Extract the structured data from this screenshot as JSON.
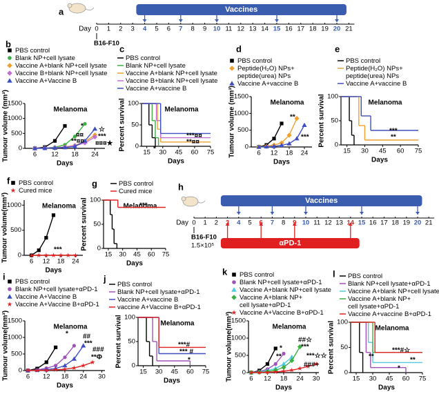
{
  "timelines": [
    {
      "panel": "a",
      "day_label": "Day",
      "days": [
        0,
        1,
        2,
        3,
        4,
        5,
        6,
        7,
        8,
        9,
        10,
        11,
        12,
        13,
        14,
        15,
        16,
        17,
        18,
        19,
        20,
        21
      ],
      "bars": [
        {
          "label": "Vaccines",
          "color": "#3b5db0"
        }
      ],
      "arrows": [
        {
          "days": [
            4,
            7,
            10,
            15,
            20
          ],
          "color": "#3b5db0"
        }
      ],
      "tumor_label": "B16-F10"
    },
    {
      "panel": "h",
      "day_label": "Day",
      "days": [
        0,
        1,
        2,
        3,
        4,
        5,
        6,
        7,
        8,
        9,
        10,
        11,
        12,
        13,
        14,
        15,
        16,
        17,
        18,
        19,
        20,
        21
      ],
      "bars": [
        {
          "label": "Vaccines",
          "color": "#3b5db0"
        },
        {
          "label": "αPD-1",
          "color": "#e02020"
        }
      ],
      "arrows": [
        {
          "days": [
            4,
            7,
            10,
            15,
            20
          ],
          "color": "#3b5db0"
        },
        {
          "days": [
            3,
            6,
            9,
            14
          ],
          "color": "#e02020"
        }
      ],
      "tumor_label": "B16-F10",
      "dose": "1.5×10⁵"
    }
  ],
  "chart_data": [
    {
      "type": "line",
      "panel": "b",
      "title": "Melanoma",
      "xlabel": "Days",
      "ylabel": "Tumour volume (mm³)",
      "xlim": [
        3,
        27
      ],
      "ylim": [
        0,
        1500
      ],
      "xticks": [
        6,
        12,
        18,
        24
      ],
      "yticks": [
        0,
        500,
        1000,
        1500
      ],
      "series": [
        {
          "name": "PBS control",
          "color": "#000000",
          "marker": "square",
          "x": [
            6,
            9,
            12,
            15
          ],
          "values": [
            0,
            40,
            250,
            750
          ]
        },
        {
          "name": "Blank NP+cell lysate",
          "color": "#3cb043",
          "marker": "circle",
          "x": [
            6,
            9,
            12,
            15,
            18,
            21
          ],
          "values": [
            0,
            10,
            40,
            120,
            400,
            820
          ]
        },
        {
          "name": "Vaccine A+blank NP+cell lysate",
          "color": "#f0a030",
          "marker": "diamond",
          "x": [
            6,
            9,
            12,
            15,
            18,
            21,
            24
          ],
          "values": [
            0,
            10,
            20,
            50,
            100,
            220,
            450
          ]
        },
        {
          "name": "Vaccine B+blank NP+cell lysate",
          "color": "#c070d0",
          "marker": "diamond",
          "x": [
            6,
            9,
            12,
            15,
            18,
            21,
            24
          ],
          "values": [
            0,
            10,
            20,
            40,
            90,
            180,
            380
          ]
        },
        {
          "name": "Vaccine A+Vaccine B",
          "color": "#3d4fc0",
          "marker": "triangle",
          "x": [
            6,
            9,
            12,
            15,
            18,
            21,
            24
          ],
          "values": [
            0,
            5,
            15,
            30,
            60,
            250,
            650
          ]
        }
      ],
      "annotations": [
        "*",
        "¤¤",
        "**¤¤",
        "☆",
        "***",
        "¤¤¤★"
      ]
    },
    {
      "type": "step",
      "panel": "c",
      "title": "Melanoma",
      "xlabel": "Days",
      "ylabel": "Percent survival",
      "xlim": [
        10,
        75
      ],
      "ylim": [
        0,
        100
      ],
      "xticks": [
        15,
        30,
        45,
        60,
        75
      ],
      "yticks": [
        0,
        50,
        100
      ],
      "series": [
        {
          "name": "PBS control",
          "color": "#000000",
          "x": [
            0,
            15,
            17,
            20,
            23
          ],
          "values": [
            100,
            100,
            50,
            20,
            0
          ]
        },
        {
          "name": "Blank NP+cell lysate",
          "color": "#3cb043",
          "x": [
            0,
            17,
            20,
            23,
            26
          ],
          "values": [
            100,
            100,
            60,
            20,
            0
          ]
        },
        {
          "name": "Vaccine A+blank NP+cell lysate",
          "color": "#f0a030",
          "x": [
            0,
            20,
            25,
            28,
            75
          ],
          "values": [
            100,
            100,
            40,
            10,
            10
          ]
        },
        {
          "name": "Vaccine B+blank NP+cell lysate",
          "color": "#c070d0",
          "x": [
            0,
            20,
            24,
            28,
            75
          ],
          "values": [
            100,
            100,
            60,
            20,
            20
          ]
        },
        {
          "name": "Vaccine A+vaccine B",
          "color": "#3d4fc0",
          "x": [
            0,
            24,
            28,
            75
          ],
          "values": [
            100,
            100,
            30,
            30
          ]
        }
      ],
      "annotations": [
        "***¤¤",
        "**¤¤",
        "*"
      ]
    },
    {
      "type": "line",
      "panel": "d",
      "title": "Melanoma",
      "xlabel": "Days",
      "ylabel": "Tumour volume (mm³)",
      "xlim": [
        3,
        27
      ],
      "ylim": [
        0,
        1500
      ],
      "xticks": [
        6,
        12,
        18,
        24
      ],
      "yticks": [
        0,
        500,
        1000,
        1500
      ],
      "series": [
        {
          "name": "PBS control",
          "color": "#000000",
          "marker": "square",
          "x": [
            6,
            9,
            12,
            15
          ],
          "values": [
            0,
            60,
            250,
            700
          ]
        },
        {
          "name": "Peptide(H₂O) NPs+ peptide(urea) NPs",
          "color": "#f0a030",
          "marker": "diamond",
          "x": [
            6,
            9,
            12,
            15,
            18,
            21
          ],
          "values": [
            0,
            20,
            60,
            120,
            350,
            850
          ]
        },
        {
          "name": "Vaccine A+vaccine B",
          "color": "#3d4fc0",
          "marker": "triangle",
          "x": [
            6,
            9,
            12,
            15,
            18,
            21,
            24
          ],
          "values": [
            0,
            10,
            20,
            50,
            100,
            250,
            650
          ]
        }
      ],
      "annotations": [
        "**",
        "***"
      ]
    },
    {
      "type": "step",
      "panel": "e",
      "title": "Melanoma",
      "xlabel": "Days",
      "ylabel": "Percent survival",
      "xlim": [
        10,
        75
      ],
      "ylim": [
        0,
        100
      ],
      "xticks": [
        15,
        30,
        45,
        60,
        75
      ],
      "yticks": [
        0,
        50,
        100
      ],
      "series": [
        {
          "name": "PBS control",
          "color": "#000000",
          "x": [
            0,
            15,
            17,
            19,
            21
          ],
          "values": [
            100,
            100,
            50,
            20,
            0
          ]
        },
        {
          "name": "Peptide(H₂O) NPs+ peptide(urea) NPs",
          "color": "#f0a030",
          "x": [
            0,
            22,
            25,
            30,
            75
          ],
          "values": [
            100,
            100,
            40,
            10,
            10
          ]
        },
        {
          "name": "Vaccine A+vaccine B",
          "color": "#3d4fc0",
          "x": [
            0,
            24,
            27,
            35,
            75
          ],
          "values": [
            100,
            100,
            60,
            30,
            30
          ]
        }
      ],
      "annotations": [
        "***",
        "**"
      ]
    },
    {
      "type": "line",
      "panel": "f",
      "title": "Melanoma",
      "xlabel": "Days",
      "ylabel": "Tumour volume(mm³)",
      "xlim": [
        3,
        27
      ],
      "ylim": [
        0,
        1100
      ],
      "xticks": [
        6,
        12,
        18,
        24
      ],
      "yticks": [
        0,
        500,
        1000
      ],
      "series": [
        {
          "name": "PBS control",
          "color": "#000000",
          "marker": "square",
          "x": [
            6,
            9,
            12,
            15
          ],
          "values": [
            0,
            100,
            350,
            800
          ]
        },
        {
          "name": "Cured mice",
          "color": "#e02020",
          "marker": "star",
          "x": [
            6,
            9,
            12,
            15,
            18,
            21,
            24
          ],
          "values": [
            0,
            0,
            0,
            0,
            0,
            0,
            0
          ]
        }
      ],
      "annotations": [
        "***"
      ]
    },
    {
      "type": "step",
      "panel": "g",
      "title": "Melanoma",
      "xlabel": "Days",
      "ylabel": "Percent survival",
      "xlim": [
        10,
        75
      ],
      "ylim": [
        0,
        100
      ],
      "xticks": [
        15,
        30,
        45,
        60,
        75
      ],
      "yticks": [
        0,
        50,
        100
      ],
      "series": [
        {
          "name": "PBS control",
          "color": "#000000",
          "x": [
            0,
            15,
            17,
            19,
            21,
            24
          ],
          "values": [
            100,
            100,
            70,
            40,
            10,
            0
          ]
        },
        {
          "name": "Cured mice",
          "color": "#e02020",
          "x": [
            0,
            25,
            75
          ],
          "values": [
            100,
            85,
            85
          ]
        }
      ],
      "annotations": [
        "***"
      ]
    },
    {
      "type": "line",
      "panel": "i",
      "title": "Melanoma",
      "xlabel": "Days",
      "ylabel": "Tumour volume(mm³)",
      "xlim": [
        5,
        31
      ],
      "ylim": [
        0,
        1500
      ],
      "xticks": [
        6,
        12,
        18,
        24,
        30
      ],
      "yticks": [
        0,
        500,
        1000,
        1500
      ],
      "series": [
        {
          "name": "PBS control",
          "color": "#000000",
          "marker": "square",
          "x": [
            6,
            9,
            12,
            15
          ],
          "values": [
            0,
            60,
            250,
            700
          ]
        },
        {
          "name": "Blank NP+cell lysate+αPD-1",
          "color": "#a050b8",
          "marker": "circle",
          "x": [
            6,
            9,
            12,
            15,
            18,
            21
          ],
          "values": [
            0,
            20,
            70,
            150,
            400,
            750
          ]
        },
        {
          "name": "Vaccine A+Vaccine B",
          "color": "#3d4fc0",
          "marker": "triangle",
          "x": [
            6,
            9,
            12,
            15,
            18,
            21,
            24
          ],
          "values": [
            0,
            10,
            30,
            60,
            150,
            350,
            750
          ]
        },
        {
          "name": "Vaccine A+Vaccine B+αPD-1",
          "color": "#e02020",
          "marker": "star",
          "x": [
            6,
            9,
            12,
            15,
            18,
            21,
            24,
            27
          ],
          "values": [
            0,
            5,
            10,
            20,
            40,
            80,
            150,
            250
          ]
        }
      ],
      "annotations": [
        "*",
        "##",
        "***",
        "###",
        "**Φ"
      ]
    },
    {
      "type": "step",
      "panel": "j",
      "title": "Melanoma",
      "xlabel": "Days",
      "ylabel": "Percent survival",
      "xlim": [
        10,
        75
      ],
      "ylim": [
        0,
        100
      ],
      "xticks": [
        15,
        30,
        45,
        60,
        75
      ],
      "yticks": [
        0,
        50,
        100
      ],
      "series": [
        {
          "name": "PBS control",
          "color": "#000000",
          "x": [
            0,
            15,
            18,
            21,
            24
          ],
          "values": [
            100,
            100,
            50,
            20,
            0
          ]
        },
        {
          "name": "Blank NP+cell lysate+αPD-1",
          "color": "#a050b8",
          "x": [
            0,
            20,
            24,
            28,
            60
          ],
          "values": [
            100,
            100,
            50,
            10,
            0
          ]
        },
        {
          "name": "Vaccine A+vaccine B",
          "color": "#3d4fc0",
          "x": [
            0,
            24,
            30,
            75
          ],
          "values": [
            100,
            100,
            25,
            25
          ]
        },
        {
          "name": "vaccine A+Vaccine B+αPD-1",
          "color": "#e02020",
          "x": [
            0,
            25,
            30,
            75
          ],
          "values": [
            100,
            100,
            38,
            38
          ]
        }
      ],
      "annotations": [
        "***#",
        "*** #",
        "*"
      ]
    },
    {
      "type": "line",
      "panel": "k",
      "title": "Melanoma",
      "xlabel": "Days",
      "ylabel": "Tumour volume(mm³)",
      "xlim": [
        5,
        31
      ],
      "ylim": [
        0,
        1500
      ],
      "xticks": [
        6,
        12,
        18,
        24,
        30
      ],
      "yticks": [
        0,
        500,
        1000,
        1500
      ],
      "series": [
        {
          "name": "PBS control",
          "color": "#000000",
          "marker": "square",
          "x": [
            6,
            9,
            12,
            15
          ],
          "values": [
            0,
            60,
            250,
            700
          ]
        },
        {
          "name": "Blank NP+cell lysate+αPD-1",
          "color": "#a050b8",
          "marker": "circle",
          "x": [
            6,
            9,
            12,
            15,
            18
          ],
          "values": [
            0,
            30,
            100,
            250,
            550
          ]
        },
        {
          "name": "Vaccine A+blank NP+cell lysate",
          "color": "#50c8e0",
          "marker": "triangle",
          "x": [
            6,
            9,
            12,
            15,
            18,
            21
          ],
          "values": [
            0,
            20,
            60,
            120,
            250,
            450
          ]
        },
        {
          "name": "Vaccine A+blank NP+ cell lysate+αPD-1",
          "color": "#3cb043",
          "marker": "diamond",
          "x": [
            6,
            9,
            12,
            15,
            18,
            21,
            24
          ],
          "values": [
            0,
            10,
            30,
            70,
            150,
            350,
            750
          ]
        },
        {
          "name": "Vaccine A+Vaccine B+αPD-1",
          "color": "#e02020",
          "marker": "star",
          "x": [
            6,
            9,
            12,
            15,
            18,
            21,
            24,
            27,
            30
          ],
          "values": [
            0,
            5,
            10,
            20,
            40,
            70,
            120,
            180,
            250
          ]
        }
      ],
      "annotations": [
        "*",
        "**",
        "##☆",
        "***",
        "***☆☆",
        "###+"
      ]
    },
    {
      "type": "step",
      "panel": "l",
      "title": "Melanoma",
      "xlabel": "Days",
      "ylabel": "Percent survival",
      "xlim": [
        10,
        75
      ],
      "ylim": [
        0,
        100
      ],
      "xticks": [
        15,
        30,
        45,
        60,
        75
      ],
      "yticks": [
        0,
        50,
        100
      ],
      "series": [
        {
          "name": "PBS control",
          "color": "#000000",
          "x": [
            0,
            15,
            18,
            21
          ],
          "values": [
            100,
            100,
            40,
            0
          ]
        },
        {
          "name": "Blank NP+cell lysate+αPD-1",
          "color": "#a050b8",
          "x": [
            0,
            20,
            24,
            28,
            60
          ],
          "values": [
            100,
            100,
            40,
            10,
            0
          ]
        },
        {
          "name": "Vaccine A+blank NP+cell lysate",
          "color": "#50c8e0",
          "x": [
            0,
            22,
            26,
            30,
            75
          ],
          "values": [
            100,
            100,
            60,
            20,
            20
          ]
        },
        {
          "name": "Vaccine A+blank NP+ cell lysate+αPD-1",
          "color": "#3cb043",
          "x": [
            0,
            24,
            30,
            75
          ],
          "values": [
            100,
            100,
            40,
            40
          ]
        },
        {
          "name": "Vaccine A+vaccine B+αPD-1",
          "color": "#e02020",
          "x": [
            0,
            26,
            32,
            75
          ],
          "values": [
            100,
            100,
            40,
            40
          ]
        }
      ],
      "annotations": [
        "***#☆",
        "**",
        "**",
        "*"
      ]
    }
  ]
}
